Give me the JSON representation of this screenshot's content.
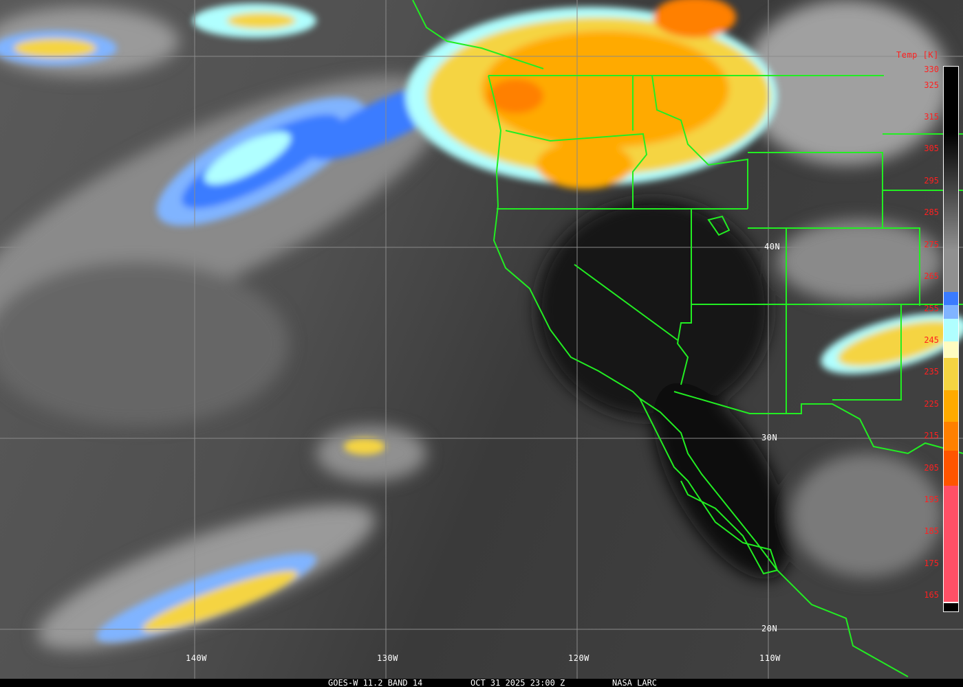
{
  "caption": {
    "satellite": "GOES-W 11.2 BAND 14",
    "datetime": "OCT 31 2025 23:00 Z",
    "source": "NASA LARC"
  },
  "longitude_labels": [
    "140W",
    "130W",
    "120W",
    "110W"
  ],
  "latitude_labels": [
    "40N",
    "30N",
    "20N"
  ],
  "colorbar": {
    "title": "Temp [K]",
    "ticks": [
      "330",
      "325",
      "315",
      "305",
      "295",
      "285",
      "275",
      "265",
      "255",
      "245",
      "235",
      "225",
      "215",
      "205",
      "195",
      "185",
      "175",
      "165"
    ],
    "colors": {
      "cold_pink": "#ff5066",
      "red_orange": "#ff5500",
      "orange": "#ff8000",
      "amber": "#ffaa00",
      "yellow": "#f5d442",
      "cream": "#fffcc0",
      "light_cyan": "#b0ffff",
      "light_blue": "#80b4ff",
      "blue": "#3a7bff"
    }
  },
  "colors": {
    "borders": "#22ee22",
    "grid": "#8a8a8a",
    "labels_red": "#ff2020"
  }
}
